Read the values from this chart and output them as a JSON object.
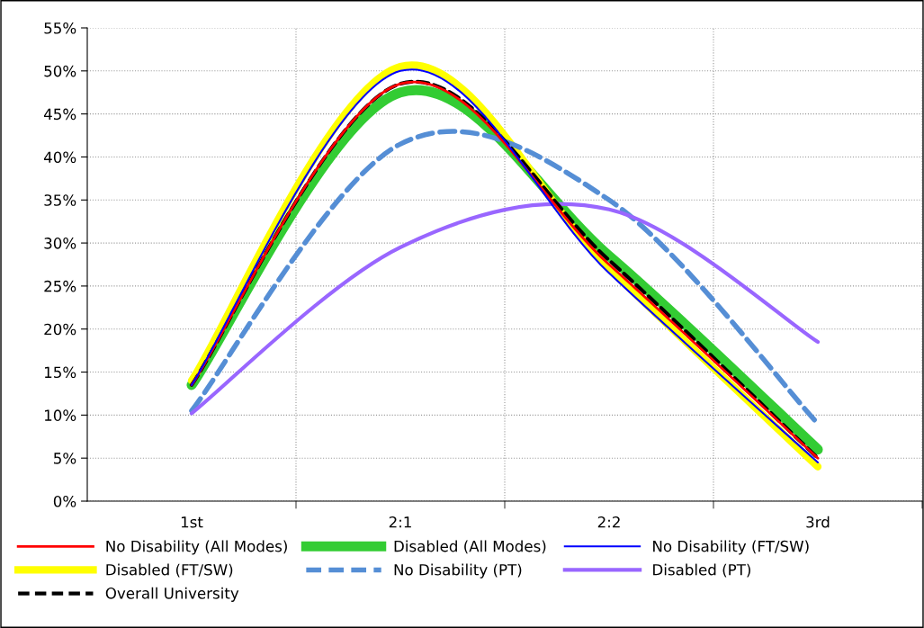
{
  "chart_data": {
    "type": "line",
    "categories": [
      "1st",
      "2:1",
      "2:2",
      "3rd"
    ],
    "ylim": [
      0,
      55
    ],
    "yticks": [
      {
        "value": 0,
        "label": "0%"
      },
      {
        "value": 5,
        "label": "5%"
      },
      {
        "value": 10,
        "label": "10%"
      },
      {
        "value": 15,
        "label": "15%"
      },
      {
        "value": 20,
        "label": "20%"
      },
      {
        "value": 25,
        "label": "25%"
      },
      {
        "value": 30,
        "label": "30%"
      },
      {
        "value": 35,
        "label": "35%"
      },
      {
        "value": 40,
        "label": "40%"
      },
      {
        "value": 45,
        "label": "45%"
      },
      {
        "value": 50,
        "label": "50%"
      },
      {
        "value": 55,
        "label": "55%"
      }
    ],
    "grid": true,
    "legend": "bottom",
    "marker": "none",
    "series": [
      {
        "name": "No Disability (All Modes)",
        "color": "#ff0000",
        "values": [
          13.5,
          48.5,
          27.5,
          5
        ]
      },
      {
        "name": "Disabled (All Modes)",
        "color": "#33cc33",
        "values": [
          13.5,
          47.5,
          28.5,
          6
        ]
      },
      {
        "name": "No Disability (FT/SW)",
        "color": "#0000ff",
        "values": [
          13.5,
          50,
          26.5,
          4.5
        ]
      },
      {
        "name": "Disabled (FT/SW)",
        "color": "#ffff00",
        "values": [
          14,
          50.5,
          27,
          4
        ]
      },
      {
        "name": "No Disability (PT)",
        "color": "#558ed5",
        "values": [
          10.5,
          41.5,
          35,
          9
        ],
        "line_style": "dashed"
      },
      {
        "name": "Disabled (PT)",
        "color": "#9966ff",
        "values": [
          10.2,
          29.5,
          33.9,
          18.5
        ]
      },
      {
        "name": "Overall University",
        "color": "#000000",
        "values": [
          13.5,
          48.5,
          28,
          5
        ],
        "line_style": "dashed"
      }
    ]
  }
}
